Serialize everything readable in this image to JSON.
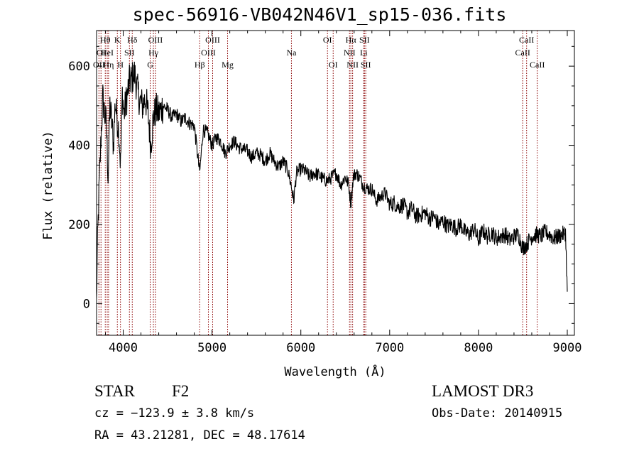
{
  "chart_data": {
    "type": "line",
    "title": "spec-56916-VB042N46V1_sp15-036.fits",
    "xlabel": "Wavelength (Å)",
    "ylabel": "Flux (relative)",
    "xlim": [
      3700,
      9080
    ],
    "ylim": [
      -80,
      690
    ],
    "xticks": [
      4000,
      5000,
      6000,
      7000,
      8000,
      9000
    ],
    "yticks": [
      0,
      200,
      400,
      600
    ],
    "line_color": "#000000",
    "marker_color": "#8b0000",
    "series": [
      {
        "name": "flux",
        "x": [
          3700,
          3710,
          3730,
          3750,
          3770,
          3790,
          3810,
          3830,
          3850,
          3870,
          3890,
          3910,
          3930,
          3950,
          3970,
          3990,
          4010,
          4040,
          4070,
          4100,
          4130,
          4160,
          4190,
          4220,
          4250,
          4280,
          4310,
          4340,
          4370,
          4400,
          4450,
          4500,
          4550,
          4600,
          4650,
          4700,
          4750,
          4800,
          4861,
          4900,
          4950,
          5000,
          5050,
          5100,
          5150,
          5200,
          5250,
          5300,
          5350,
          5400,
          5450,
          5500,
          5550,
          5600,
          5650,
          5700,
          5750,
          5800,
          5850,
          5890,
          5920,
          5950,
          6000,
          6050,
          6100,
          6150,
          6200,
          6250,
          6300,
          6350,
          6400,
          6450,
          6500,
          6540,
          6563,
          6590,
          6620,
          6660,
          6700,
          6750,
          6800,
          6850,
          6900,
          6950,
          7000,
          7050,
          7100,
          7150,
          7200,
          7250,
          7300,
          7350,
          7400,
          7450,
          7500,
          7550,
          7600,
          7650,
          7700,
          7750,
          7800,
          7850,
          7900,
          7950,
          8000,
          8050,
          8100,
          8150,
          8200,
          8250,
          8300,
          8350,
          8400,
          8450,
          8498,
          8542,
          8600,
          8662,
          8700,
          8750,
          8800,
          8850,
          8900,
          8950,
          8980,
          9000
        ],
        "y": [
          0,
          150,
          300,
          420,
          520,
          480,
          450,
          320,
          500,
          460,
          400,
          510,
          470,
          440,
          350,
          530,
          480,
          520,
          560,
          570,
          580,
          540,
          510,
          500,
          520,
          480,
          400,
          470,
          490,
          480,
          500,
          490,
          470,
          480,
          460,
          470,
          455,
          450,
          330,
          440,
          430,
          400,
          420,
          410,
          380,
          400,
          410,
          395,
          390,
          385,
          370,
          380,
          375,
          360,
          380,
          360,
          345,
          360,
          340,
          300,
          260,
          330,
          340,
          335,
          320,
          330,
          325,
          315,
          310,
          320,
          330,
          300,
          320,
          300,
          250,
          320,
          330,
          320,
          300,
          290,
          290,
          260,
          270,
          280,
          250,
          255,
          245,
          250,
          230,
          240,
          220,
          225,
          230,
          215,
          220,
          200,
          210,
          195,
          200,
          190,
          200,
          180,
          175,
          190,
          160,
          185,
          170,
          180,
          165,
          170,
          175,
          160,
          170,
          175,
          140,
          150,
          170,
          175,
          170,
          180,
          175,
          165,
          170,
          175,
          180,
          30
        ]
      }
    ],
    "line_markers": [
      {
        "label": "OII",
        "x": 3727,
        "row": 2
      },
      {
        "label": "OI",
        "x": 3750,
        "row": 1
      },
      {
        "label": "Hθ",
        "x": 3798,
        "row": 0
      },
      {
        "label": "HeI",
        "x": 3820,
        "row": 1
      },
      {
        "label": "Hη",
        "x": 3835,
        "row": 2
      },
      {
        "label": "K",
        "x": 3934,
        "row": 0
      },
      {
        "label": "H",
        "x": 3969,
        "row": 2
      },
      {
        "label": "SII",
        "x": 4070,
        "row": 1
      },
      {
        "label": "Hδ",
        "x": 4102,
        "row": 0
      },
      {
        "label": "G",
        "x": 4304,
        "row": 2
      },
      {
        "label": "Hγ",
        "x": 4340,
        "row": 1
      },
      {
        "label": "OIII",
        "x": 4363,
        "row": 0
      },
      {
        "label": "Hβ",
        "x": 4861,
        "row": 2
      },
      {
        "label": "OIII",
        "x": 4959,
        "row": 1
      },
      {
        "label": "OIII",
        "x": 5007,
        "row": 0
      },
      {
        "label": "Mg",
        "x": 5175,
        "row": 2
      },
      {
        "label": "Na",
        "x": 5894,
        "row": 1
      },
      {
        "label": "OI",
        "x": 6300,
        "row": 0
      },
      {
        "label": "OI",
        "x": 6364,
        "row": 2
      },
      {
        "label": "NII",
        "x": 6548,
        "row": 1
      },
      {
        "label": "Hα",
        "x": 6563,
        "row": 0
      },
      {
        "label": "NII",
        "x": 6583,
        "row": 2
      },
      {
        "label": "Li",
        "x": 6708,
        "row": 1
      },
      {
        "label": "SII",
        "x": 6716,
        "row": 0
      },
      {
        "label": "SII",
        "x": 6731,
        "row": 2
      },
      {
        "label": "CaII",
        "x": 8498,
        "row": 1
      },
      {
        "label": "CaII",
        "x": 8542,
        "row": 0
      },
      {
        "label": "CaII",
        "x": 8662,
        "row": 2
      }
    ]
  },
  "info": {
    "object_class": "STAR",
    "subclass": "F2",
    "survey": "LAMOST DR3",
    "redshift": "cz = −123.9 ± 3.8 km/s",
    "obs_date": "Obs-Date: 20140915",
    "coordinates": "RA =  43.21281, DEC =  48.17614"
  }
}
